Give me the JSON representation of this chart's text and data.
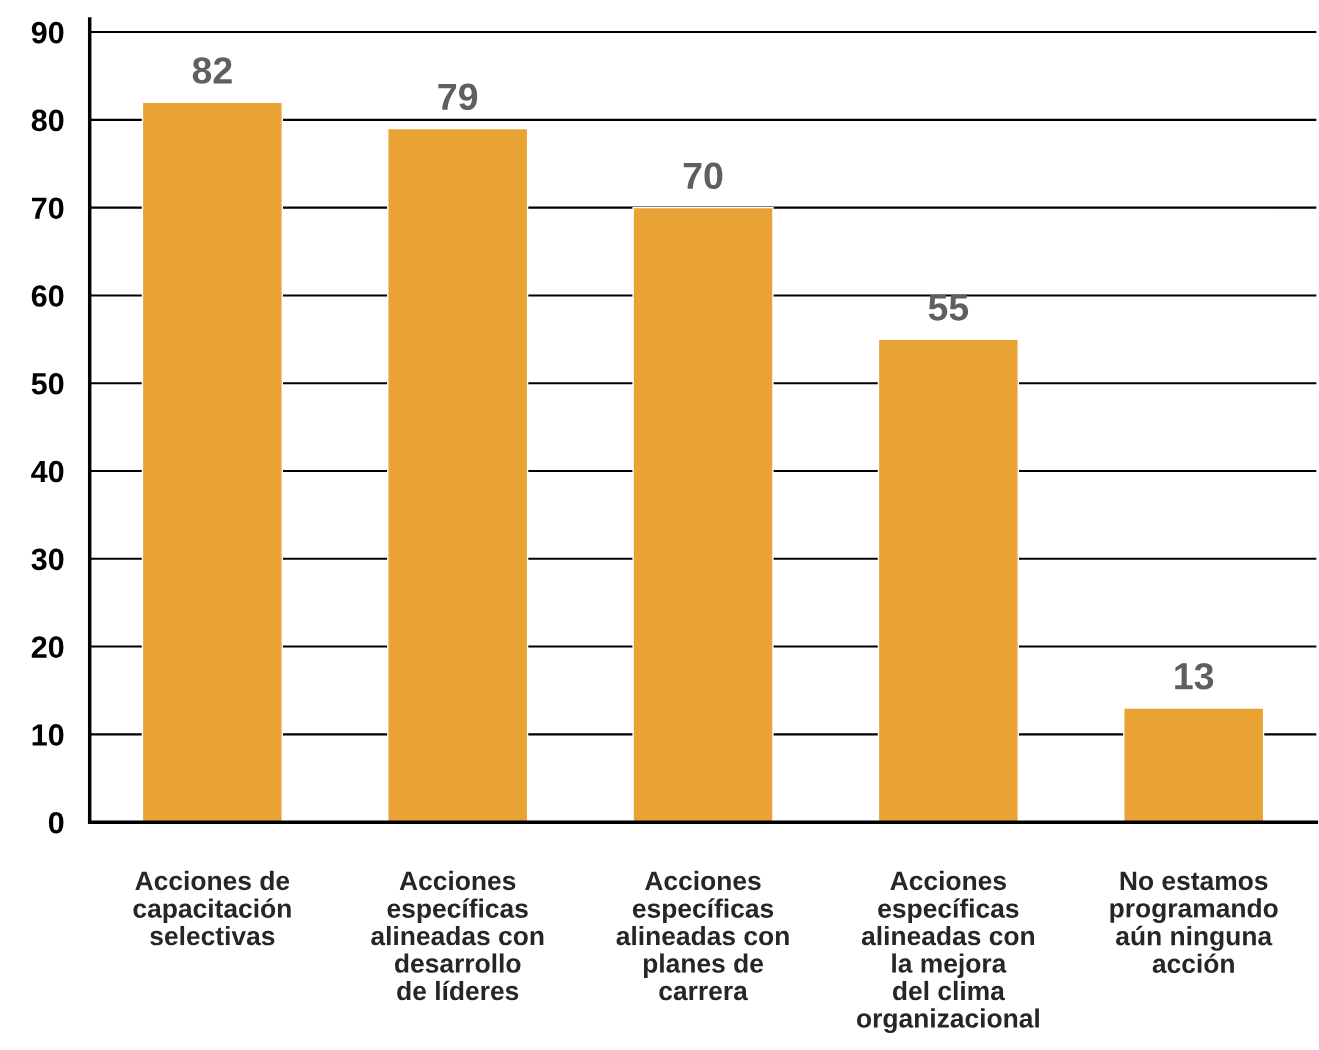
{
  "chart_data": {
    "type": "bar",
    "categories": [
      "Acciones de\ncapacitación\nselectivas",
      "Acciones\nespecíficas\nalineadas con\ndesarrollo\nde líderes",
      "Acciones\nespecíficas\nalineadas con\nplanes de\ncarrera",
      "Acciones\nespecíficas\nalineadas con\nla mejora\ndel clima\norganizacional",
      "No estamos\nprogramando\naún ninguna\nacción"
    ],
    "values": [
      82,
      79,
      70,
      55,
      13
    ],
    "color": "#e8a334",
    "data_labels": true,
    "ylim": [
      0,
      91.5
    ],
    "yticks": [
      0,
      10,
      20,
      30,
      40,
      50,
      60,
      70,
      80,
      90
    ],
    "grid": "y"
  }
}
